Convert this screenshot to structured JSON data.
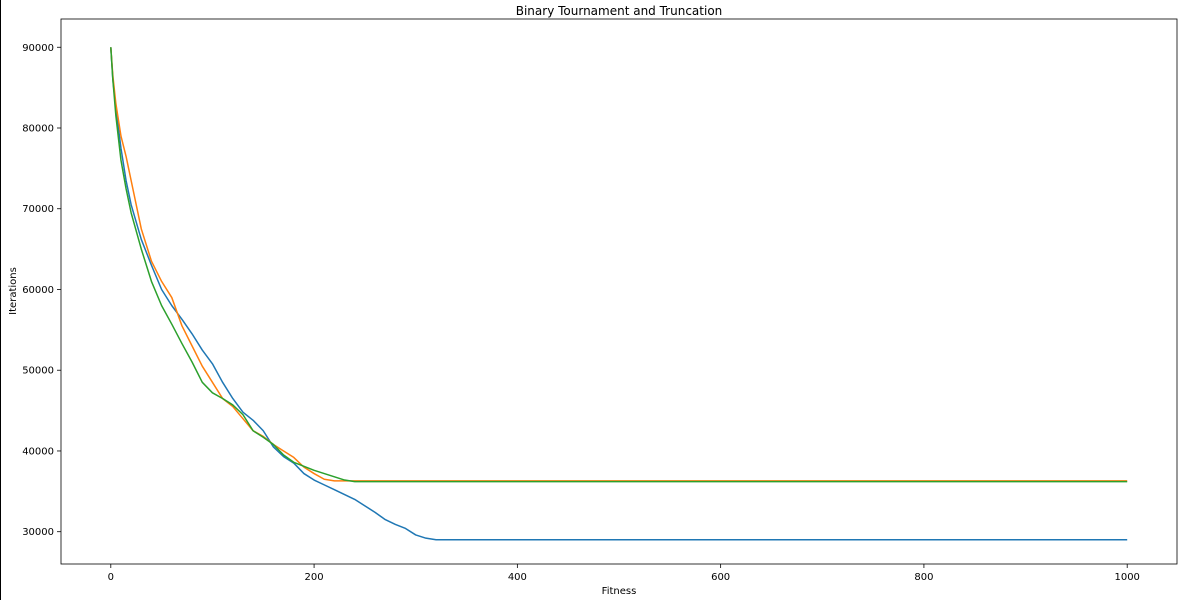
{
  "chart_data": {
    "type": "line",
    "title": "Binary Tournament and Truncation",
    "xlabel": "Fitness",
    "ylabel": "Iterations",
    "xlim": [
      -49,
      1049
    ],
    "ylim": [
      26000,
      93500
    ],
    "xticks": [
      0,
      200,
      400,
      600,
      800,
      1000
    ],
    "yticks": [
      30000,
      40000,
      50000,
      60000,
      70000,
      80000,
      90000
    ],
    "xtick_labels": [
      "0",
      "200",
      "400",
      "600",
      "800",
      "1000"
    ],
    "ytick_labels": [
      "30000",
      "40000",
      "50000",
      "60000",
      "70000",
      "80000",
      "90000"
    ],
    "grid": false,
    "legend": "none",
    "series": [
      {
        "color": "#1f77b4",
        "x": [
          0,
          2,
          5,
          10,
          15,
          20,
          30,
          40,
          50,
          60,
          70,
          80,
          90,
          100,
          110,
          120,
          130,
          140,
          150,
          160,
          170,
          180,
          190,
          200,
          210,
          220,
          230,
          240,
          250,
          260,
          270,
          280,
          290,
          300,
          310,
          320,
          330,
          400,
          500,
          600,
          700,
          800,
          900,
          1000
        ],
        "y": [
          90000,
          86000,
          82500,
          77500,
          73500,
          70500,
          66200,
          63000,
          60000,
          58000,
          56300,
          54500,
          52500,
          50800,
          48500,
          46500,
          44800,
          43800,
          42500,
          40500,
          39300,
          38500,
          37200,
          36400,
          35800,
          35200,
          34600,
          34000,
          33200,
          32400,
          31500,
          30900,
          30400,
          29600,
          29200,
          29000,
          29000,
          29000,
          29000,
          29000,
          29000,
          29000,
          29000,
          29000
        ]
      },
      {
        "color": "#ff7f0e",
        "x": [
          0,
          2,
          5,
          10,
          15,
          20,
          30,
          40,
          50,
          60,
          70,
          80,
          90,
          100,
          110,
          120,
          130,
          140,
          150,
          160,
          170,
          180,
          190,
          200,
          210,
          220,
          230,
          240,
          300,
          400,
          500,
          600,
          700,
          800,
          900,
          1000
        ],
        "y": [
          90000,
          86500,
          83000,
          79000,
          76500,
          73500,
          67500,
          63500,
          61000,
          59000,
          55500,
          53000,
          50500,
          48500,
          46500,
          45500,
          44000,
          42500,
          41800,
          40800,
          40000,
          39200,
          38000,
          37200,
          36500,
          36300,
          36300,
          36300,
          36300,
          36300,
          36300,
          36300,
          36300,
          36300,
          36300,
          36300
        ]
      },
      {
        "color": "#2ca02c",
        "x": [
          0,
          2,
          5,
          10,
          15,
          20,
          30,
          40,
          50,
          60,
          70,
          80,
          90,
          100,
          110,
          120,
          130,
          140,
          150,
          160,
          170,
          180,
          190,
          200,
          210,
          220,
          230,
          240,
          300,
          400,
          500,
          600,
          700,
          800,
          900,
          1000
        ],
        "y": [
          90000,
          86000,
          81500,
          76000,
          72500,
          69500,
          65000,
          61000,
          58000,
          55700,
          53300,
          51000,
          48500,
          47200,
          46500,
          45700,
          44500,
          42500,
          41700,
          40800,
          39500,
          38600,
          38100,
          37600,
          37200,
          36800,
          36400,
          36200,
          36200,
          36200,
          36200,
          36200,
          36200,
          36200,
          36200,
          36200
        ]
      }
    ]
  }
}
